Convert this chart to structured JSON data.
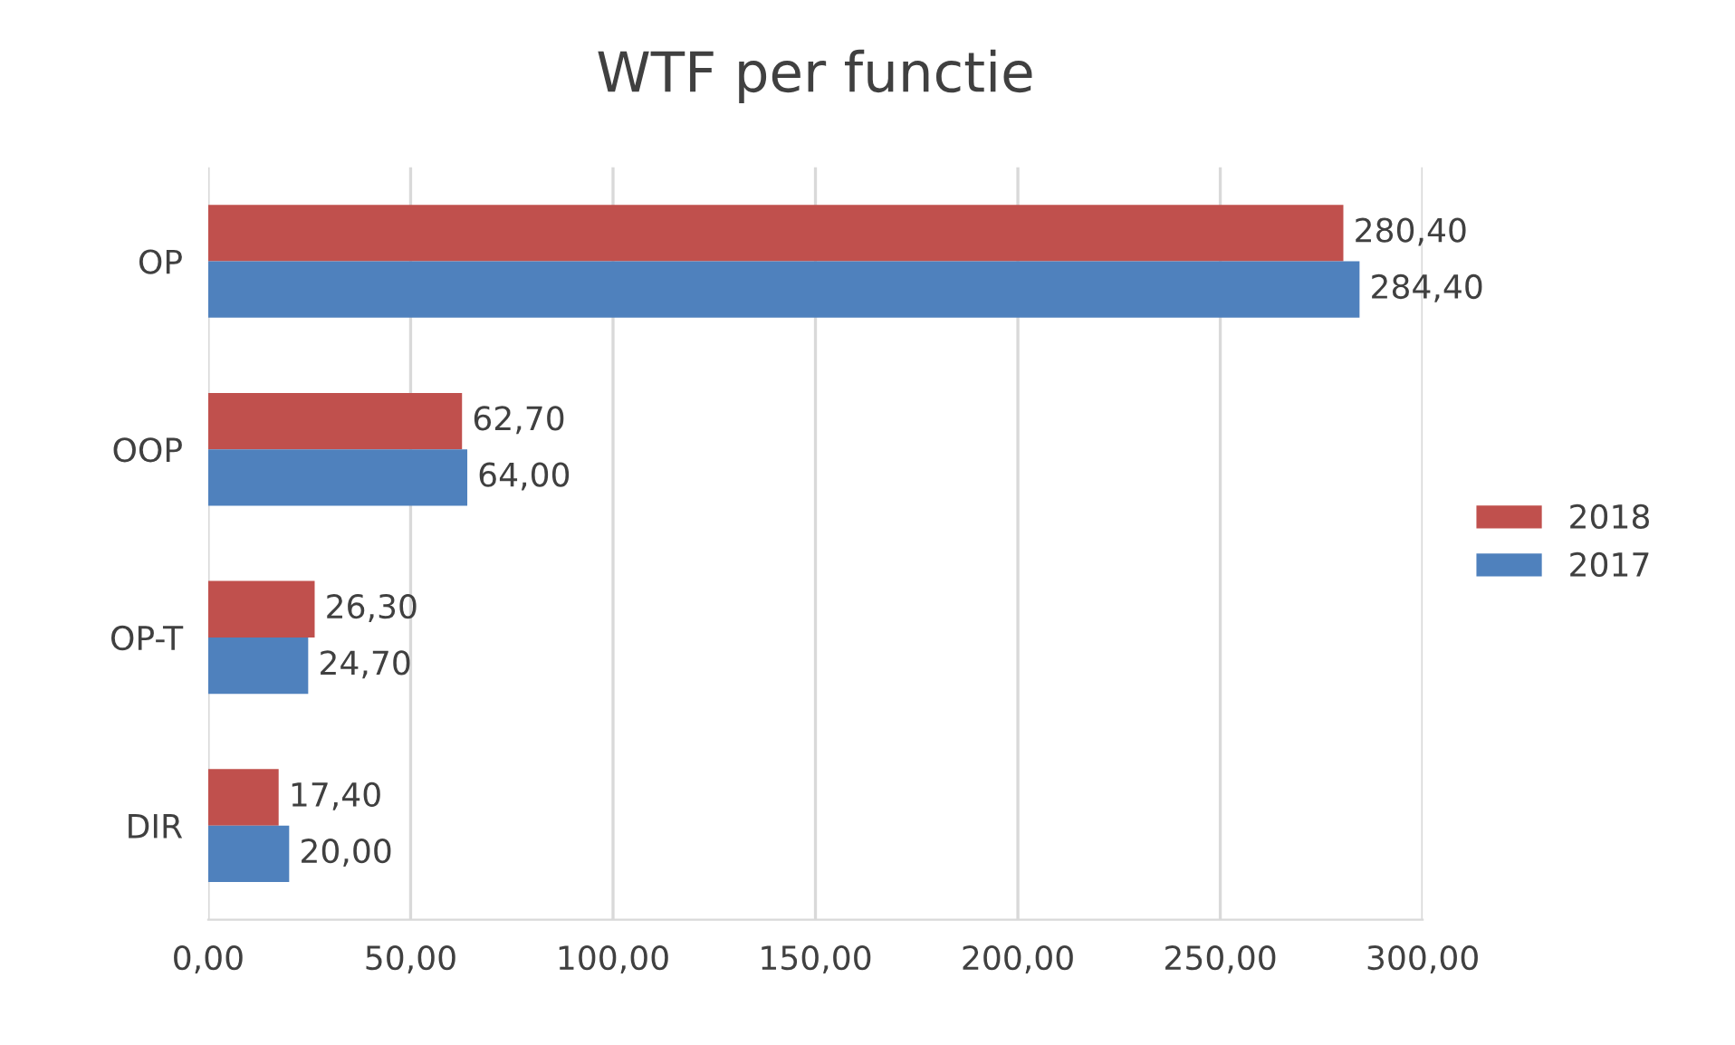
{
  "chart_data": {
    "type": "bar",
    "orientation": "horizontal",
    "title": "WTF per functie",
    "categories": [
      "OP",
      "OOP",
      "OP-T",
      "DIR"
    ],
    "series": [
      {
        "name": "2018",
        "color": "#c0504d",
        "values": [
          280.4,
          62.7,
          26.3,
          17.4
        ],
        "value_labels": [
          "280,40",
          "62,70",
          "26,30",
          "17,40"
        ]
      },
      {
        "name": "2017",
        "color": "#4f81bd",
        "values": [
          284.4,
          64.0,
          24.7,
          20.0
        ],
        "value_labels": [
          "284,40",
          "64,00",
          "24,70",
          "20,00"
        ]
      }
    ],
    "xlim": [
      0,
      300
    ],
    "xticks": [
      {
        "value": 0,
        "label": "0,00"
      },
      {
        "value": 50,
        "label": "50,00"
      },
      {
        "value": 100,
        "label": "100,00"
      },
      {
        "value": 150,
        "label": "150,00"
      },
      {
        "value": 200,
        "label": "200,00"
      },
      {
        "value": 250,
        "label": "250,00"
      },
      {
        "value": 300,
        "label": "300,00"
      }
    ],
    "grid": "x",
    "legend": "right"
  }
}
